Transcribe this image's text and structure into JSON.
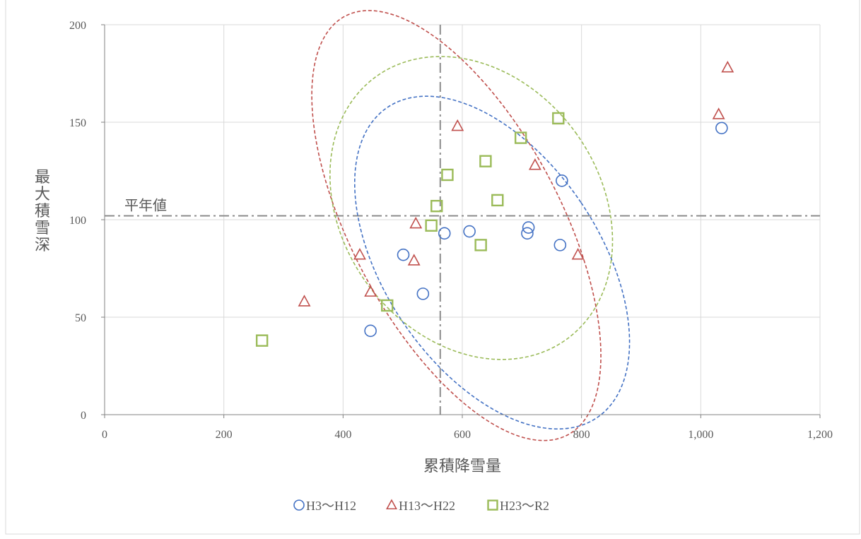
{
  "chart_data": {
    "type": "scatter",
    "title": "",
    "xlabel": "累積降雪量",
    "ylabel": "最大積雪深",
    "xlim": [
      0,
      1200
    ],
    "ylim": [
      0,
      200
    ],
    "x_ticks": [
      0,
      200,
      400,
      600,
      800,
      1000,
      1200
    ],
    "x_tick_labels": [
      "0",
      "200",
      "400",
      "600",
      "800",
      "1,000",
      "1,200"
    ],
    "y_ticks": [
      0,
      50,
      100,
      150,
      200
    ],
    "y_tick_labels": [
      "0",
      "50",
      "100",
      "150",
      "200"
    ],
    "grid": true,
    "legend_position": "bottom",
    "reference_lines": {
      "horizontal": {
        "value": 102,
        "label": "平年値",
        "color": "#8c8c8c"
      },
      "vertical": {
        "value": 563,
        "color": "#8c8c8c"
      }
    },
    "series": [
      {
        "name": "H3～H12",
        "marker": "circle",
        "color": "#4472c4",
        "points": [
          [
            446,
            43
          ],
          [
            501,
            82
          ],
          [
            534,
            62
          ],
          [
            570,
            93
          ],
          [
            612,
            94
          ],
          [
            709,
            93
          ],
          [
            711,
            96
          ],
          [
            764,
            87
          ],
          [
            767,
            120
          ],
          [
            1035,
            147
          ]
        ],
        "ellipse": {
          "center": [
            650,
            78
          ],
          "rx": 180,
          "ry": 30,
          "rotation_deg": 34
        }
      },
      {
        "name": "H13～H22",
        "marker": "triangle",
        "color": "#c0504d",
        "points": [
          [
            335,
            58
          ],
          [
            428,
            82
          ],
          [
            446,
            63
          ],
          [
            519,
            79
          ],
          [
            522,
            98
          ],
          [
            592,
            148
          ],
          [
            722,
            128
          ],
          [
            794,
            82
          ],
          [
            1030,
            154
          ],
          [
            1045,
            178
          ]
        ],
        "ellipse": {
          "center": [
            590,
            97
          ],
          "rx": 175,
          "ry": 38,
          "rotation_deg": 28
        }
      },
      {
        "name": "H23～R2",
        "marker": "square",
        "color": "#9bbb59",
        "points": [
          [
            264,
            38
          ],
          [
            474,
            56
          ],
          [
            548,
            97
          ],
          [
            557,
            107
          ],
          [
            575,
            123
          ],
          [
            631,
            87
          ],
          [
            639,
            130
          ],
          [
            659,
            110
          ],
          [
            698,
            142
          ],
          [
            761,
            152
          ]
        ],
        "ellipse": {
          "center": [
            615,
            106
          ],
          "rx": 216,
          "ry": 26,
          "rotation_deg": 36
        }
      }
    ]
  }
}
